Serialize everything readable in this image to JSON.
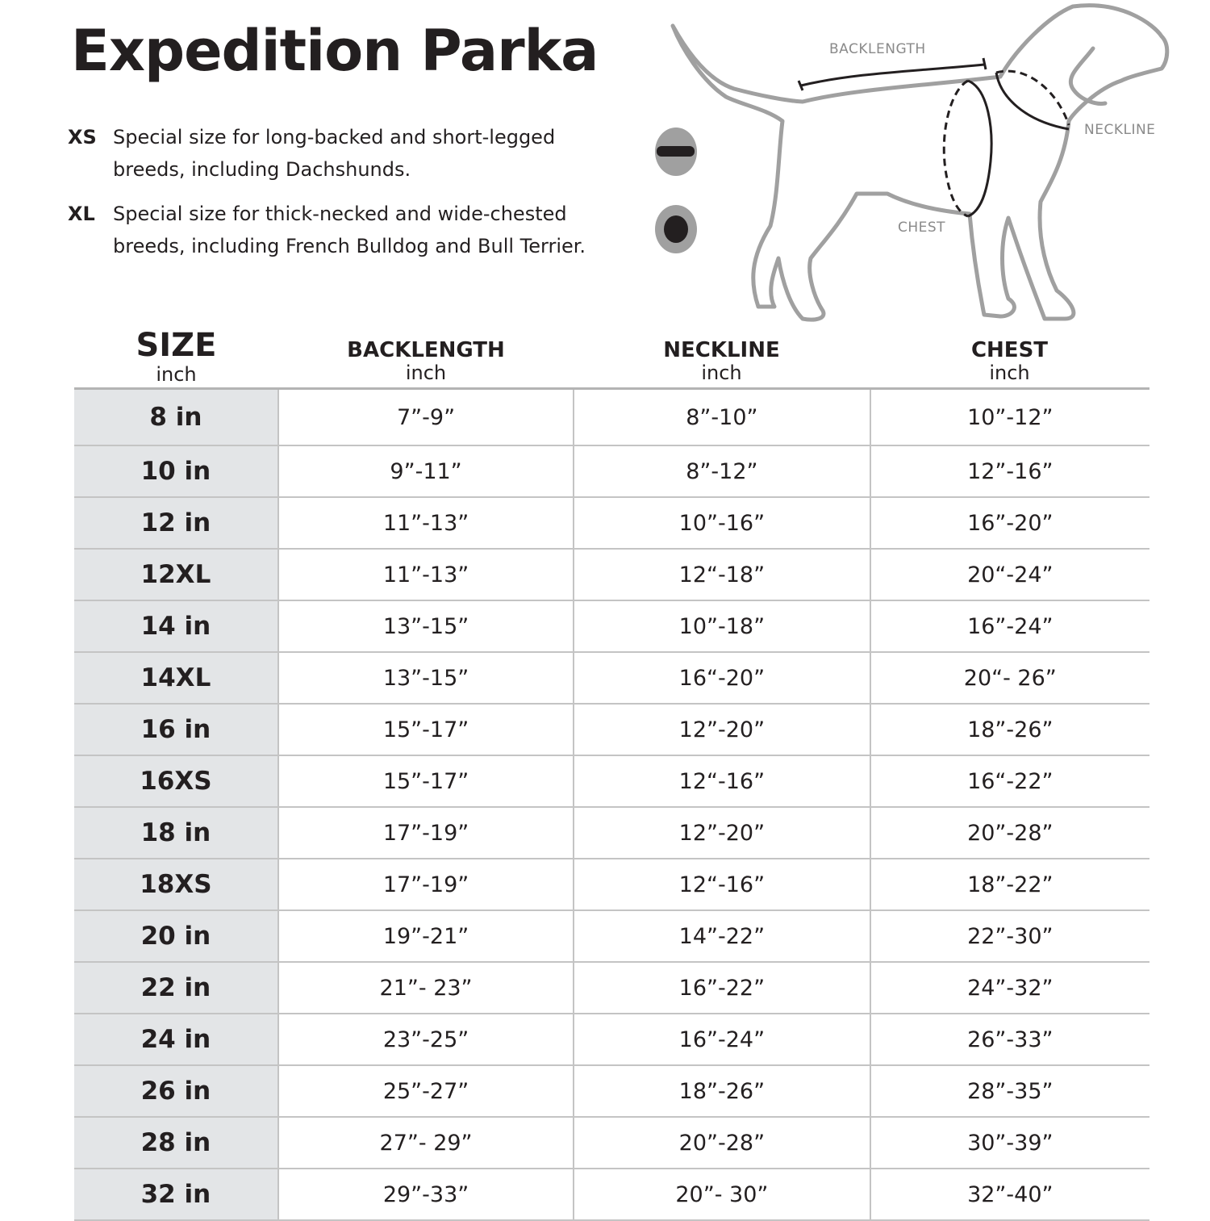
{
  "title": "Expedition Parka",
  "notes": [
    {
      "code": "XS",
      "text": "Special size for long-backed and short-legged breeds, including Dachshunds."
    },
    {
      "code": "XL",
      "text": "Special size for thick-necked and wide-chested breeds, including French Bulldog and Bull Terrier."
    }
  ],
  "diagram": {
    "backlength": "BACKLENGTH",
    "neckline": "NECKLINE",
    "chest": "CHEST",
    "icons": [
      "xs-dash-icon",
      "xl-dot-icon"
    ],
    "outline_color": "#a0a0a0"
  },
  "table": {
    "headers": [
      {
        "label": "SIZE",
        "unit": "inch"
      },
      {
        "label": "BACKLENGTH",
        "unit": "inch"
      },
      {
        "label": "NECKLINE",
        "unit": "inch"
      },
      {
        "label": "CHEST",
        "unit": "inch"
      }
    ],
    "rows": [
      [
        "8 in",
        "7”-9”",
        "8”-10”",
        "10”-12”"
      ],
      [
        "10 in",
        "9”-11”",
        "8”-12”",
        "12”-16”"
      ],
      [
        "12 in",
        "11”-13”",
        "10”-16”",
        "16”-20”"
      ],
      [
        "12XL",
        "11”-13”",
        "12“-18”",
        "20“-24”"
      ],
      [
        "14 in",
        "13”-15”",
        "10”-18”",
        "16”-24”"
      ],
      [
        "14XL",
        "13”-15”",
        "16“-20”",
        "20“- 26”"
      ],
      [
        "16 in",
        "15”-17”",
        "12”-20”",
        "18”-26”"
      ],
      [
        "16XS",
        "15”-17”",
        "12“-16”",
        "16“-22”"
      ],
      [
        "18 in",
        "17”-19”",
        "12”-20”",
        "20”-28”"
      ],
      [
        "18XS",
        "17”-19”",
        "12“-16”",
        "18”-22”"
      ],
      [
        "20 in",
        "19”-21”",
        "14”-22”",
        "22”-30”"
      ],
      [
        "22 in",
        "21”- 23”",
        "16”-22”",
        "24”-32”"
      ],
      [
        "24 in",
        "23”-25”",
        "16”-24”",
        "26”-33”"
      ],
      [
        "26 in",
        "25”-27”",
        "18”-26”",
        "28”-35”"
      ],
      [
        "28 in",
        "27”- 29”",
        "20”-28”",
        "30”-39”"
      ],
      [
        "32 in",
        "29”-33”",
        "20”- 30”",
        "32”-40”"
      ]
    ],
    "size_column_bg": "#e3e5e7"
  }
}
